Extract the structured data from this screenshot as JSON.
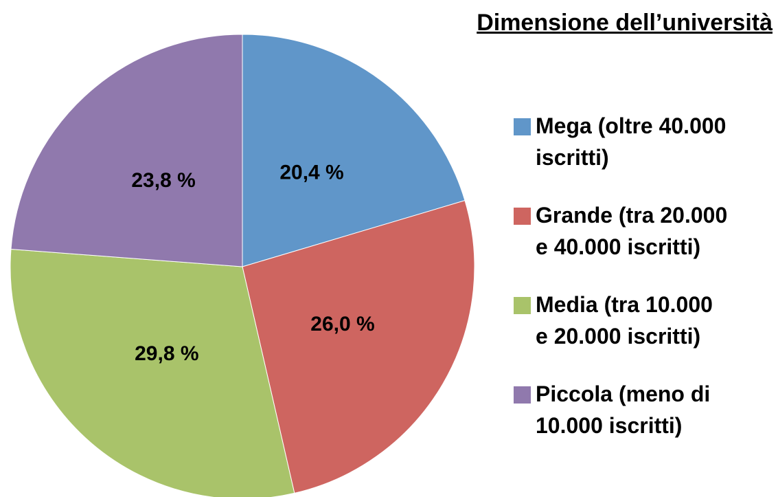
{
  "chart_data": {
    "type": "pie",
    "title": "Dimensione dell’università",
    "categories": [
      "Mega (oltre 40.000 iscritti)",
      "Grande (tra 20.000 e 40.000 iscritti)",
      "Media (tra 10.000 e 20.000 iscritti)",
      "Piccola (meno di 10.000 iscritti)"
    ],
    "values": [
      20.4,
      26.0,
      29.8,
      23.8
    ],
    "value_labels": [
      "20,4 %",
      "26,0 %",
      "29,8 %",
      "23,8 %"
    ],
    "colors": [
      "#6096c9",
      "#ce6560",
      "#a9c36a",
      "#9079ad"
    ],
    "legend": "right"
  }
}
